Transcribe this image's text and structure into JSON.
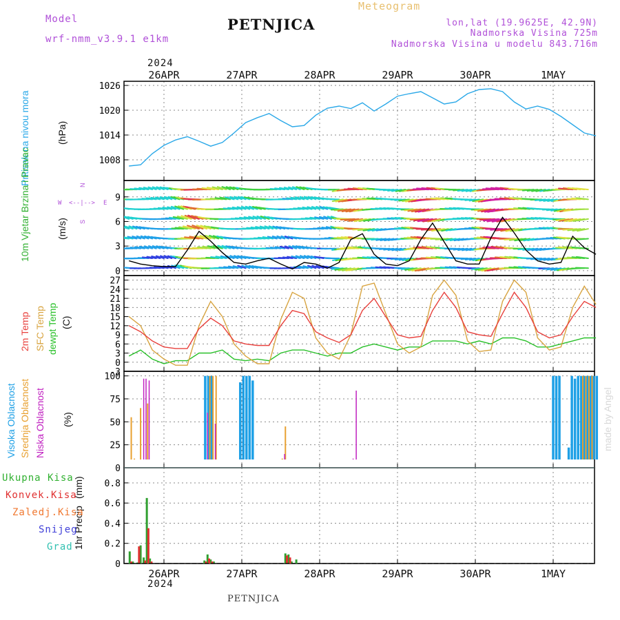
{
  "header": {
    "model_label": "Model",
    "model_name": "wrf-nmm_v3.9.1  e1km",
    "station": "PETNJICA",
    "product": "Meteogram",
    "lonlat": "lon,lat (19.9625E, 42.9N)",
    "elevation": "Nadmorska Visina 725m",
    "model_elevation": "Nadmorska Visina u modelu 843.716m"
  },
  "footer": {
    "station": "PETNJICA",
    "credit": "made by Angel"
  },
  "time_axis": {
    "year": "2024",
    "labels": [
      "26APR",
      "27APR",
      "28APR",
      "29APR",
      "30APR",
      "1MAY"
    ]
  },
  "colors": {
    "pressure": "#2aa8e8",
    "t2m": "#e8403c",
    "tsfc": "#d8a440",
    "dewpt": "#28c028",
    "cloud_high": "#1ea0e6",
    "cloud_mid": "#e8a030",
    "cloud_low": "#c020c0",
    "precip_total": "#30a030",
    "precip_conv": "#e03030",
    "label_purple": "#b050d8",
    "label_orange": "#e8c070"
  },
  "chart_data": [
    {
      "type": "line",
      "title": "",
      "ylabel": "Pritisak na nivou mora",
      "yunit": "(hPa)",
      "ylim": [
        1003,
        1027
      ],
      "yticks": [
        1008,
        1014,
        1020,
        1026
      ],
      "grid": true,
      "x_unit": "days since 26APR 00UTC",
      "x": [
        -0.45,
        -0.3,
        -0.15,
        0.0,
        0.15,
        0.3,
        0.45,
        0.6,
        0.75,
        0.9,
        1.05,
        1.2,
        1.35,
        1.5,
        1.65,
        1.8,
        1.95,
        2.1,
        2.25,
        2.4,
        2.55,
        2.7,
        2.85,
        3.0,
        3.15,
        3.3,
        3.45,
        3.6,
        3.75,
        3.9,
        4.05,
        4.2,
        4.35,
        4.5,
        4.65,
        4.8,
        4.95,
        5.1,
        5.25,
        5.4,
        5.55
      ],
      "series": [
        {
          "name": "",
          "values": [
            1006.5,
            1006.8,
            1009.5,
            1011.5,
            1012.8,
            1013.6,
            1012.5,
            1011.3,
            1012.2,
            1014.5,
            1017,
            1018.2,
            1019.2,
            1017.5,
            1016,
            1016.3,
            1018.8,
            1020.5,
            1021,
            1020.4,
            1021.8,
            1019.8,
            1021.5,
            1023.4,
            1024,
            1024.5,
            1023,
            1021.5,
            1022,
            1024,
            1025,
            1025.2,
            1024.5,
            1022,
            1020.3,
            1021,
            1020.2,
            1018.5,
            1016.5,
            1014.5,
            1013.8
          ]
        }
      ]
    },
    {
      "type": "line",
      "title": "",
      "ylabel": "10m Vjetar Brzina i Pravac",
      "yunit": "(m/s)",
      "ylim": [
        -0.6,
        11.0
      ],
      "yticks": [
        0,
        3,
        6,
        9
      ],
      "grid": true,
      "direction_legend": [
        "N",
        "W",
        "<--|-->",
        "E",
        "S"
      ],
      "x_unit": "days since 26APR 00UTC",
      "x": [
        -0.45,
        -0.3,
        -0.15,
        0.0,
        0.15,
        0.3,
        0.45,
        0.6,
        0.75,
        0.9,
        1.05,
        1.2,
        1.35,
        1.5,
        1.65,
        1.8,
        1.95,
        2.1,
        2.25,
        2.4,
        2.55,
        2.7,
        2.85,
        3.0,
        3.15,
        3.3,
        3.45,
        3.6,
        3.75,
        3.9,
        4.05,
        4.2,
        4.35,
        4.5,
        4.65,
        4.8,
        4.95,
        5.1,
        5.25,
        5.4,
        5.55
      ],
      "series": [
        {
          "name": "",
          "values": [
            1.2,
            0.8,
            0.6,
            0.5,
            0.5,
            2.5,
            4.8,
            3.6,
            2.2,
            1.0,
            0.8,
            1.2,
            1.5,
            0.8,
            0.2,
            1.0,
            0.8,
            0.3,
            1.0,
            3.8,
            4.5,
            2.0,
            0.8,
            0.6,
            1.2,
            3.8,
            5.8,
            3.5,
            1.2,
            0.8,
            0.8,
            4.0,
            6.5,
            4.6,
            2.5,
            1.2,
            0.8,
            1.0,
            4.2,
            2.8,
            2.0
          ]
        }
      ]
    },
    {
      "type": "line",
      "title": "",
      "ylabel": "2m Temp / SFC Temp / dewpt Temp",
      "yunit": "(C)",
      "ylim": [
        -3,
        28.5
      ],
      "yticks": [
        -3,
        0,
        3,
        6,
        9,
        12,
        15,
        18,
        21,
        24,
        27
      ],
      "grid": true,
      "x_unit": "days since 26APR 00UTC",
      "x": [
        -0.45,
        -0.3,
        -0.15,
        0.0,
        0.15,
        0.3,
        0.45,
        0.6,
        0.75,
        0.9,
        1.05,
        1.2,
        1.35,
        1.5,
        1.65,
        1.8,
        1.95,
        2.1,
        2.25,
        2.4,
        2.55,
        2.7,
        2.85,
        3.0,
        3.15,
        3.3,
        3.45,
        3.6,
        3.75,
        3.9,
        4.05,
        4.2,
        4.35,
        4.5,
        4.65,
        4.8,
        4.95,
        5.1,
        5.25,
        5.4,
        5.55
      ],
      "series": [
        {
          "name": "2m Temp",
          "values": [
            12,
            10,
            7,
            5,
            4.5,
            4.5,
            11,
            14.5,
            12,
            7,
            6,
            5.5,
            5.5,
            12,
            17,
            16,
            10,
            8,
            6.5,
            9,
            17,
            21,
            15,
            9,
            8,
            8.5,
            17,
            23,
            18,
            10,
            9,
            8.5,
            16,
            23,
            18,
            10,
            8,
            9,
            15,
            20,
            18
          ]
        },
        {
          "name": "SFC Temp",
          "values": [
            15,
            12,
            4,
            1,
            -1,
            -1,
            12,
            20,
            15,
            6,
            2,
            -0.5,
            -0.5,
            14,
            23,
            21,
            8,
            3,
            1,
            9,
            25,
            26,
            16,
            6,
            3,
            5,
            22,
            27,
            22,
            7,
            3.5,
            4,
            20,
            27,
            23,
            8,
            4,
            5,
            18,
            25,
            19
          ]
        },
        {
          "name": "dewpt Temp",
          "values": [
            2,
            4,
            1,
            -0.5,
            0.5,
            0.5,
            3,
            3,
            4,
            1,
            0.5,
            1,
            0.5,
            3,
            4,
            4,
            3,
            2,
            3,
            3,
            5,
            6,
            5,
            4,
            5,
            5,
            7,
            7,
            7,
            6,
            7,
            6,
            8,
            8,
            7,
            5,
            5,
            6,
            7,
            8,
            8
          ]
        }
      ]
    },
    {
      "type": "bar",
      "title": "",
      "ylabel": "Visoka Oblacnost / Srednja Oblacnost / Niska Oblacnost",
      "yunit": "(%)",
      "ylim": [
        0,
        105
      ],
      "yticks": [
        0,
        25,
        50,
        75,
        100
      ],
      "grid": true,
      "x_unit": "days since 26APR 00UTC",
      "series": [
        {
          "name": "Visoka Oblacnost",
          "x": [
            0.53,
            0.57,
            0.61,
            0.98,
            1.02,
            1.06,
            1.1,
            1.14,
            5.0,
            5.04,
            5.08,
            5.2,
            5.24,
            5.28,
            5.32,
            5.36,
            5.4,
            5.44,
            5.48,
            5.52,
            5.56
          ],
          "values": [
            100,
            100,
            100,
            93,
            100,
            100,
            100,
            95,
            100,
            100,
            100,
            22,
            100,
            97,
            100,
            100,
            100,
            100,
            100,
            100,
            100
          ]
        },
        {
          "name": "Srednja Oblacnost",
          "x": [
            -0.42,
            -0.38,
            -0.34,
            -0.3,
            -0.21,
            0.49,
            0.55,
            0.59,
            0.63,
            0.67,
            1.48,
            1.52,
            1.56,
            1.6,
            1.64,
            5.38,
            5.42,
            5.46,
            5.5
          ],
          "values": [
            55,
            10,
            8,
            65,
            70,
            8,
            8,
            100,
            100,
            100,
            8,
            10,
            45,
            8,
            8,
            100,
            100,
            100,
            100
          ]
        },
        {
          "name": "Niska Oblacnost",
          "x": [
            -0.26,
            -0.23,
            -0.19,
            -0.11,
            0.44,
            0.47,
            0.51,
            0.56,
            0.66,
            1.5,
            1.55,
            1.62,
            1.65,
            2.43,
            2.47
          ],
          "values": [
            97,
            97,
            95,
            8,
            8,
            8,
            8,
            60,
            48,
            8,
            15,
            8,
            8,
            10,
            84
          ]
        }
      ]
    },
    {
      "type": "bar",
      "title": "",
      "ylabel": "1hr Precip",
      "yunit": "(mm)",
      "ylim": [
        0,
        0.95
      ],
      "yticks": [
        0,
        0.2,
        0.4,
        0.6,
        0.8
      ],
      "grid": true,
      "legend_labels": [
        "Ukupna Kisa",
        "Konvek.Kisa",
        "Zaledj.Kisa",
        "Snijeg",
        "Grad"
      ],
      "x_unit": "days since 26APR 00UTC",
      "series": [
        {
          "name": "Ukupna Kisa",
          "x": [
            -0.44,
            -0.4,
            -0.34,
            -0.3,
            -0.26,
            -0.22,
            -0.18,
            0.52,
            0.56,
            0.6,
            0.64,
            1.56,
            1.6,
            1.64,
            1.7
          ],
          "values": [
            0.12,
            0.02,
            0.01,
            0.18,
            0.06,
            0.65,
            0.05,
            0.03,
            0.09,
            0.04,
            0.02,
            0.1,
            0.09,
            0.02,
            0.04
          ]
        },
        {
          "name": "Konvek.Kisa",
          "x": [
            -0.42,
            -0.32,
            -0.24,
            -0.2,
            -0.16,
            0.54,
            0.58,
            0.62,
            1.58,
            1.62
          ],
          "values": [
            0.02,
            0.17,
            0.03,
            0.35,
            0.02,
            0.02,
            0.05,
            0.02,
            0.08,
            0.06
          ]
        }
      ]
    }
  ]
}
